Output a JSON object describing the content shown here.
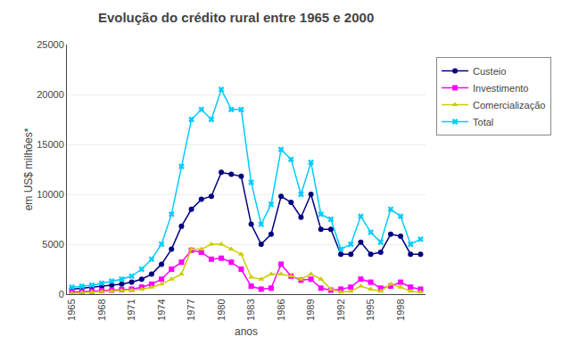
{
  "chart_data": {
    "type": "line",
    "title": "Evolução do crédito rural entre 1965 e 2000",
    "x_label": "anos",
    "y_label": "em US$ milhões*",
    "x": [
      1965,
      1966,
      1967,
      1968,
      1969,
      1970,
      1971,
      1972,
      1973,
      1974,
      1975,
      1976,
      1977,
      1978,
      1979,
      1980,
      1981,
      1982,
      1983,
      1984,
      1985,
      1986,
      1987,
      1988,
      1989,
      1990,
      1991,
      1992,
      1993,
      1994,
      1995,
      1996,
      1997,
      1998,
      1999,
      2000
    ],
    "series": [
      {
        "name": "Custeio",
        "color": "#000080",
        "marker": "circle",
        "values": [
          500,
          600,
          700,
          800,
          900,
          1000,
          1200,
          1500,
          2000,
          3000,
          4500,
          6800,
          8500,
          9500,
          9800,
          12200,
          12000,
          11800,
          7000,
          5000,
          6000,
          9800,
          9200,
          7700,
          10000,
          6500,
          6500,
          4000,
          4000,
          5200,
          4000,
          4200,
          6000,
          5800,
          4000,
          4000
        ]
      },
      {
        "name": "Investimento",
        "color": "#FF00FF",
        "marker": "square",
        "values": [
          200,
          250,
          300,
          350,
          400,
          450,
          500,
          700,
          1000,
          1500,
          2500,
          3200,
          4400,
          4200,
          3500,
          3600,
          3200,
          2500,
          800,
          500,
          600,
          3000,
          1800,
          1400,
          1500,
          600,
          400,
          500,
          700,
          1500,
          1200,
          600,
          800,
          1200,
          700,
          500
        ]
      },
      {
        "name": "Comercialização",
        "color": "#CCCC00",
        "marker": "triangle-up",
        "values": [
          100,
          150,
          200,
          250,
          300,
          350,
          400,
          500,
          700,
          1000,
          1500,
          2000,
          4500,
          4500,
          5000,
          5000,
          4500,
          4000,
          1700,
          1500,
          2000,
          2000,
          1800,
          1500,
          2000,
          1500,
          500,
          200,
          300,
          800,
          500,
          300,
          1000,
          700,
          300,
          200
        ]
      },
      {
        "name": "Total",
        "color": "#00CCFF",
        "marker": "x",
        "values": [
          700,
          800,
          900,
          1100,
          1300,
          1500,
          1800,
          2500,
          3500,
          5000,
          8000,
          12800,
          17500,
          18500,
          17500,
          20500,
          18500,
          18500,
          11200,
          7000,
          9000,
          14500,
          13500,
          10000,
          13200,
          8000,
          7500,
          4500,
          5000,
          7800,
          6200,
          5200,
          8500,
          7800,
          5000,
          5500
        ]
      }
    ],
    "xlim": [
      1964.5,
      2000.5
    ],
    "xticks": [
      1965,
      1968,
      1971,
      1974,
      1977,
      1980,
      1983,
      1986,
      1989,
      1992,
      1995,
      1998
    ],
    "ylim": [
      0,
      25000
    ],
    "yticks": [
      0,
      5000,
      10000,
      15000,
      20000,
      25000
    ],
    "grid": "y",
    "legend": "right"
  }
}
